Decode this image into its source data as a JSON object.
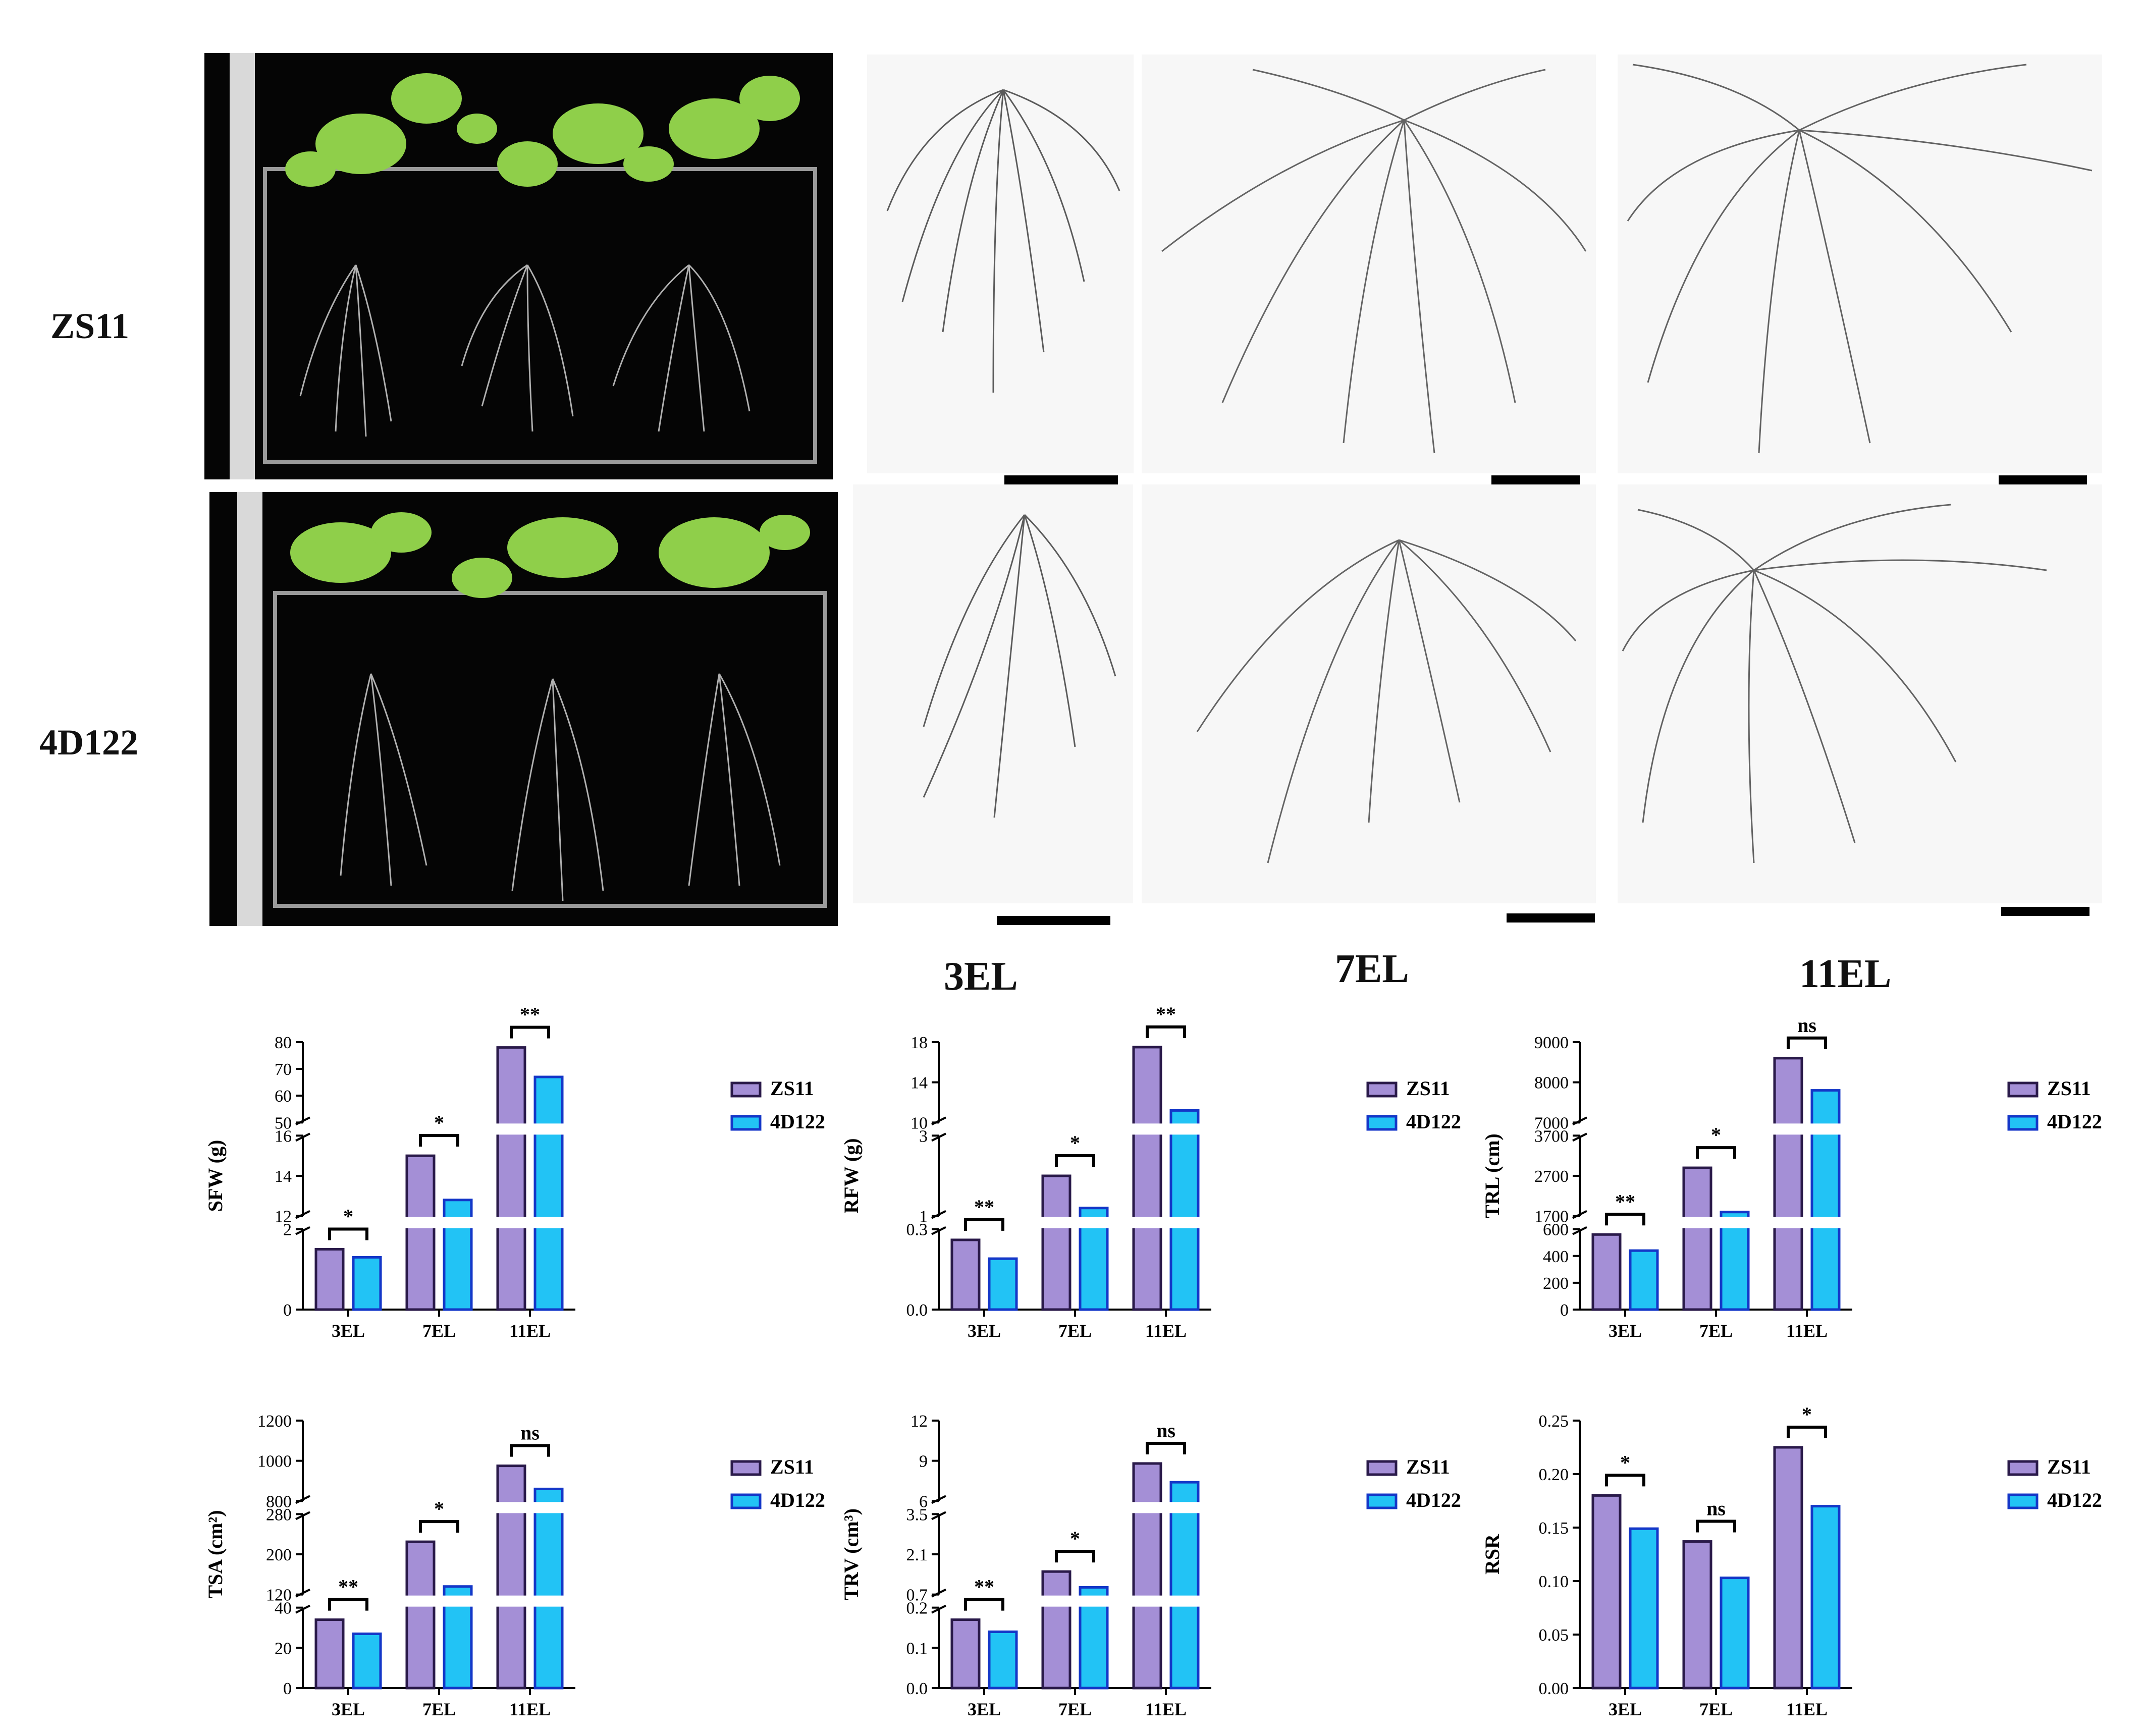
{
  "rows": [
    "ZS11",
    "4D122"
  ],
  "columns": [
    "3EL",
    "7EL",
    "11EL"
  ],
  "legend": {
    "items": [
      "ZS11",
      "4D122"
    ],
    "colors": [
      "#a48fd6",
      "#22c3f5"
    ],
    "edge_colors": [
      "#2a1a4a",
      "#1437c8"
    ]
  },
  "chart_data": [
    {
      "type": "bar",
      "ylabel": "SFW (g)",
      "categories": [
        "3EL",
        "7EL",
        "11EL"
      ],
      "series": [
        {
          "name": "ZS11",
          "values": [
            1.5,
            15,
            78
          ]
        },
        {
          "name": "4D122",
          "values": [
            1.3,
            12.8,
            67
          ]
        }
      ],
      "segments": [
        {
          "range": [
            0,
            2
          ],
          "ticks": [
            0,
            2
          ],
          "tick_labels": [
            "0",
            "2"
          ]
        },
        {
          "range": [
            12,
            16
          ],
          "ticks": [
            12,
            14,
            16
          ],
          "tick_labels": [
            "12",
            "14",
            "16"
          ]
        },
        {
          "range": [
            50,
            80
          ],
          "ticks": [
            50,
            60,
            70,
            80
          ],
          "tick_labels": [
            "50",
            "60",
            "70",
            "80"
          ]
        }
      ],
      "significance": [
        "*",
        "*",
        "**"
      ]
    },
    {
      "type": "bar",
      "ylabel": "RFW (g)",
      "categories": [
        "3EL",
        "7EL",
        "11EL"
      ],
      "series": [
        {
          "name": "ZS11",
          "values": [
            0.26,
            2.0,
            17.5
          ]
        },
        {
          "name": "4D122",
          "values": [
            0.19,
            1.2,
            11.2
          ]
        }
      ],
      "segments": [
        {
          "range": [
            0,
            0.3
          ],
          "ticks": [
            0,
            0.3
          ],
          "tick_labels": [
            "0.0",
            "0.3"
          ]
        },
        {
          "range": [
            1,
            3
          ],
          "ticks": [
            1,
            3
          ],
          "tick_labels": [
            "1",
            "3"
          ]
        },
        {
          "range": [
            10,
            18
          ],
          "ticks": [
            10,
            14,
            18
          ],
          "tick_labels": [
            "10",
            "14",
            "18"
          ]
        }
      ],
      "significance": [
        "**",
        "*",
        "**"
      ]
    },
    {
      "type": "bar",
      "ylabel": "TRL (cm)",
      "categories": [
        "3EL",
        "7EL",
        "11EL"
      ],
      "series": [
        {
          "name": "ZS11",
          "values": [
            560,
            2900,
            8600
          ]
        },
        {
          "name": "4D122",
          "values": [
            440,
            1800,
            7800
          ]
        }
      ],
      "segments": [
        {
          "range": [
            0,
            600
          ],
          "ticks": [
            0,
            200,
            400,
            600
          ],
          "tick_labels": [
            "0",
            "200",
            "400",
            "600"
          ]
        },
        {
          "range": [
            1700,
            3700
          ],
          "ticks": [
            1700,
            2700,
            3700
          ],
          "tick_labels": [
            "1700",
            "2700",
            "3700"
          ]
        },
        {
          "range": [
            7000,
            9000
          ],
          "ticks": [
            7000,
            8000,
            9000
          ],
          "tick_labels": [
            "7000",
            "8000",
            "9000"
          ]
        }
      ],
      "significance": [
        "**",
        "*",
        "ns"
      ]
    },
    {
      "type": "bar",
      "ylabel": "TSA (cm²)",
      "categories": [
        "3EL",
        "7EL",
        "11EL"
      ],
      "series": [
        {
          "name": "ZS11",
          "values": [
            34,
            225,
            975
          ]
        },
        {
          "name": "4D122",
          "values": [
            27,
            136,
            860
          ]
        }
      ],
      "segments": [
        {
          "range": [
            0,
            40
          ],
          "ticks": [
            0,
            20,
            40
          ],
          "tick_labels": [
            "0",
            "20",
            "40"
          ]
        },
        {
          "range": [
            120,
            280
          ],
          "ticks": [
            120,
            200,
            280
          ],
          "tick_labels": [
            "120",
            "200",
            "280"
          ]
        },
        {
          "range": [
            800,
            1200
          ],
          "ticks": [
            800,
            1000,
            1200
          ],
          "tick_labels": [
            "800",
            "1000",
            "1200"
          ]
        }
      ],
      "significance": [
        "**",
        "*",
        "ns"
      ]
    },
    {
      "type": "bar",
      "ylabel": "TRV (cm³)",
      "categories": [
        "3EL",
        "7EL",
        "11EL"
      ],
      "series": [
        {
          "name": "ZS11",
          "values": [
            0.17,
            1.5,
            8.8
          ]
        },
        {
          "name": "4D122",
          "values": [
            0.14,
            0.95,
            7.4
          ]
        }
      ],
      "segments": [
        {
          "range": [
            0,
            0.2
          ],
          "ticks": [
            0,
            0.1,
            0.2
          ],
          "tick_labels": [
            "0.0",
            "0.1",
            "0.2"
          ]
        },
        {
          "range": [
            0.7,
            3.5
          ],
          "ticks": [
            0.7,
            2.1,
            3.5
          ],
          "tick_labels": [
            "0.7",
            "2.1",
            "3.5"
          ]
        },
        {
          "range": [
            6,
            12
          ],
          "ticks": [
            6,
            9,
            12
          ],
          "tick_labels": [
            "6",
            "9",
            "12"
          ]
        }
      ],
      "significance": [
        "**",
        "*",
        "ns"
      ]
    },
    {
      "type": "bar",
      "ylabel": "RSR",
      "categories": [
        "3EL",
        "7EL",
        "11EL"
      ],
      "series": [
        {
          "name": "ZS11",
          "values": [
            0.18,
            0.137,
            0.225
          ]
        },
        {
          "name": "4D122",
          "values": [
            0.149,
            0.103,
            0.17
          ]
        }
      ],
      "segments": [
        {
          "range": [
            0,
            0.25
          ],
          "ticks": [
            0,
            0.05,
            0.1,
            0.15,
            0.2,
            0.25
          ],
          "tick_labels": [
            "0.00",
            "0.05",
            "0.10",
            "0.15",
            "0.20",
            "0.25"
          ]
        }
      ],
      "significance": [
        "*",
        "ns",
        "*"
      ]
    }
  ]
}
